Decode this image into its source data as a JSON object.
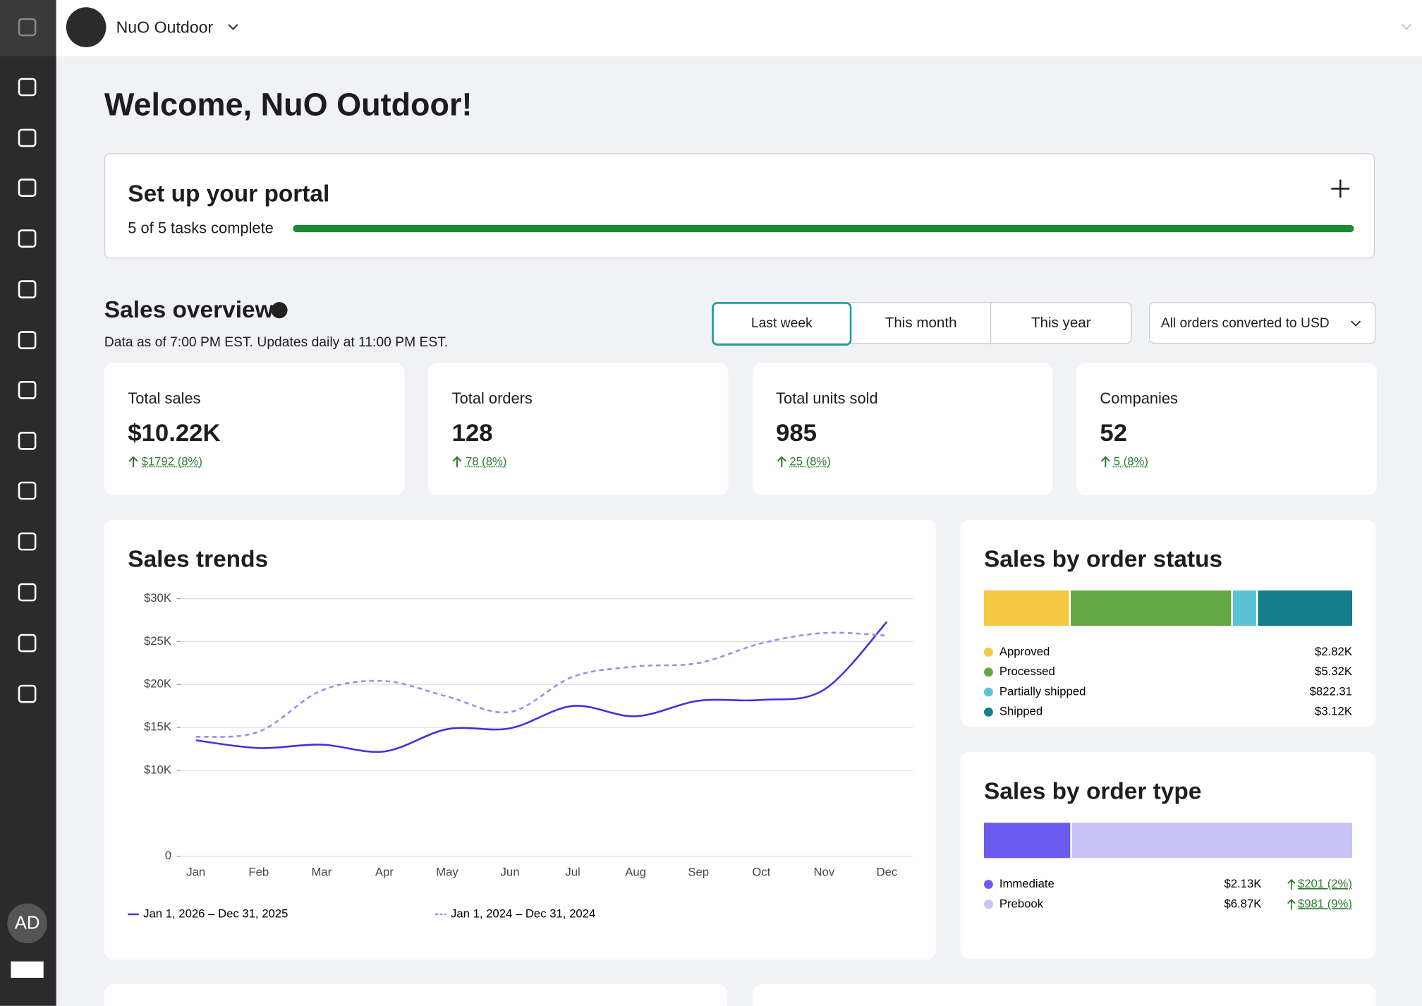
{
  "header": {
    "company": "NuO Outdoor",
    "avatar": "AD"
  },
  "welcome": "Welcome, NuO Outdoor!",
  "setup": {
    "title": "Set up your portal",
    "progress_label": "5 of 5 tasks complete"
  },
  "overview": {
    "title": "Sales overview",
    "subtitle": "Data as of 7:00 PM EST. Updates daily at 11:00 PM EST.",
    "tabs": [
      "Last week",
      "This month",
      "This year"
    ],
    "active_tab": 0,
    "currency_select": "All orders converted to USD"
  },
  "kpis": [
    {
      "label": "Total sales",
      "value": "$10.22K",
      "change": "$1792 (8%)"
    },
    {
      "label": "Total orders",
      "value": "128",
      "change": "78 (8%)"
    },
    {
      "label": "Total units sold",
      "value": "985",
      "change": "25 (8%)"
    },
    {
      "label": "Companies",
      "value": "52",
      "change": "5 (8%)"
    }
  ],
  "sales_trends": {
    "type": "line",
    "title": "Sales trends",
    "categories": [
      "Jan",
      "Feb",
      "Mar",
      "Apr",
      "May",
      "Jun",
      "Jul",
      "Aug",
      "Sep",
      "Oct",
      "Nov",
      "Dec"
    ],
    "ylim": [
      0,
      30000
    ],
    "yticks": [
      0,
      {
        "value": 10000,
        "label": "$10K"
      },
      {
        "value": 15000,
        "label": "$15K"
      },
      {
        "value": 20000,
        "label": "$20K"
      },
      {
        "value": 25000,
        "label": "$25K"
      },
      {
        "value": 30000,
        "label": "$30K"
      }
    ],
    "grid": true,
    "series": [
      {
        "name": "Jan 1, 2026 – Dec 31, 2025",
        "color": "#4330e0",
        "style": "solid",
        "values": [
          13500,
          12600,
          13000,
          12200,
          14800,
          14900,
          17500,
          16300,
          18100,
          18200,
          19400,
          27300
        ]
      },
      {
        "name": "Jan 1, 2024 – Dec 31, 2024",
        "color": "#9b8cf0",
        "style": "dashed",
        "values": [
          13900,
          14500,
          19300,
          20400,
          18600,
          16800,
          20900,
          22100,
          22500,
          24800,
          26000,
          25700
        ]
      }
    ]
  },
  "order_status": {
    "type": "stacked_bar",
    "title": "Sales by order status",
    "series": [
      {
        "name": "Approved",
        "color": "#f5c842",
        "value": 2820,
        "value_label": "$2.82K"
      },
      {
        "name": "Processed",
        "color": "#64a844",
        "value": 5320,
        "value_label": "$5.32K"
      },
      {
        "name": "Partially shipped",
        "color": "#5bc4d4",
        "value": 822.31,
        "value_label": "$822.31"
      },
      {
        "name": "Shipped",
        "color": "#117e8a",
        "value": 3120,
        "value_label": "$3.12K"
      }
    ]
  },
  "order_type": {
    "type": "stacked_bar",
    "title": "Sales by order type",
    "series": [
      {
        "name": "Immediate",
        "color": "#6b5cf0",
        "value": 2130,
        "value_label": "$2.13K",
        "change": "$201 (2%)"
      },
      {
        "name": "Prebook",
        "color": "#c8c4f7",
        "value": 6870,
        "value_label": "$6.87K",
        "change": "$981 (9%)"
      }
    ]
  }
}
